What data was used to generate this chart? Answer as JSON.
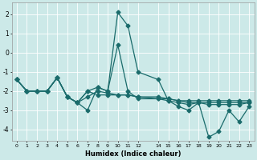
{
  "xlabel": "Humidex (Indice chaleur)",
  "bg_color": "#cce9e8",
  "grid_color": "#ffffff",
  "line_color": "#1a6b6b",
  "xlim": [
    -0.5,
    23.5
  ],
  "ylim": [
    -4.6,
    2.6
  ],
  "yticks": [
    -4,
    -3,
    -2,
    -1,
    0,
    1,
    2
  ],
  "xtick_positions": [
    0,
    1,
    2,
    3,
    4,
    5,
    6,
    7,
    8,
    9,
    10,
    11,
    12,
    14,
    15,
    16,
    17,
    18,
    19,
    20,
    21,
    22,
    23
  ],
  "xtick_labels": [
    "0",
    "1",
    "2",
    "3",
    "4",
    "5",
    "6",
    "7",
    "8",
    "9",
    "10",
    "11",
    "12",
    "14",
    "15",
    "16",
    "17",
    "18",
    "19",
    "20",
    "21",
    "22",
    "23"
  ],
  "line1_x": [
    0,
    1,
    2,
    3,
    4,
    5,
    6,
    7,
    8,
    9,
    10,
    11,
    12,
    14,
    15,
    16,
    17,
    18,
    19,
    20,
    21,
    22,
    23
  ],
  "line1_y": [
    -1.4,
    -2.0,
    -2.0,
    -2.0,
    -1.3,
    -2.3,
    -2.6,
    -3.0,
    -1.8,
    -2.0,
    2.1,
    1.4,
    -1.0,
    -1.4,
    -2.5,
    -2.8,
    -3.0,
    -2.6,
    -4.4,
    -4.1,
    -3.0,
    -3.6,
    -2.8
  ],
  "line2_x": [
    0,
    1,
    2,
    3,
    4,
    5,
    6,
    7,
    8,
    9,
    10,
    11,
    12,
    14,
    15,
    16,
    17,
    18,
    19,
    20,
    21,
    22,
    23
  ],
  "line2_y": [
    -1.4,
    -2.0,
    -2.0,
    -2.0,
    -1.3,
    -2.3,
    -2.6,
    -2.0,
    -1.8,
    -2.0,
    0.4,
    -2.0,
    -2.4,
    -2.4,
    -2.5,
    -2.6,
    -2.7,
    -2.6,
    -2.6,
    -2.6,
    -2.6,
    -2.6,
    -2.6
  ],
  "line3_x": [
    0,
    1,
    2,
    3,
    4,
    5,
    6,
    7,
    8,
    9,
    10,
    11,
    12,
    14,
    15,
    16,
    17,
    18,
    19,
    20,
    21,
    22,
    23
  ],
  "line3_y": [
    -1.4,
    -2.0,
    -2.0,
    -2.0,
    -1.3,
    -2.3,
    -2.6,
    -2.3,
    -2.0,
    -2.1,
    -2.2,
    -2.2,
    -2.3,
    -2.3,
    -2.4,
    -2.5,
    -2.5,
    -2.5,
    -2.5,
    -2.5,
    -2.5,
    -2.5,
    -2.5
  ],
  "line4_x": [
    0,
    1,
    2,
    3,
    4,
    5,
    6,
    7,
    8,
    9,
    10,
    11,
    12,
    14,
    15,
    16,
    17,
    18,
    19,
    20,
    21,
    22,
    23
  ],
  "line4_y": [
    -1.4,
    -2.0,
    -2.0,
    -2.0,
    -1.3,
    -2.3,
    -2.6,
    -2.0,
    -2.2,
    -2.2,
    -2.2,
    -2.2,
    -2.3,
    -2.4,
    -2.4,
    -2.5,
    -2.6,
    -2.6,
    -2.7,
    -2.7,
    -2.7,
    -2.7,
    -2.6
  ]
}
